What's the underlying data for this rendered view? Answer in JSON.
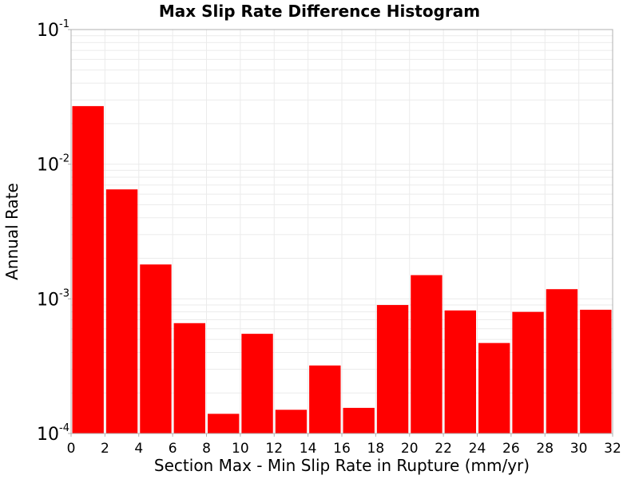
{
  "chart_data": {
    "type": "bar",
    "title": "Max Slip Rate Difference Histogram",
    "xlabel": "Section Max - Min Slip Rate in Rupture (mm/yr)",
    "ylabel": "Annual Rate",
    "y_scale": "log",
    "grid": true,
    "legend": "none",
    "colors": {
      "bar": "#ff0000",
      "bar_edge": "#ffffff",
      "grid": "#ebebeb",
      "plot_border": "#b0b0b0",
      "background": "#ffffff"
    },
    "xlim": [
      0,
      32
    ],
    "ylim": [
      0.0001,
      0.1
    ],
    "bin_width": 2,
    "bin_starts": [
      0,
      2,
      4,
      6,
      8,
      10,
      12,
      14,
      16,
      18,
      20,
      22,
      24,
      26,
      28,
      30
    ],
    "values": [
      0.027,
      0.0065,
      0.0018,
      0.00066,
      0.00014,
      0.00055,
      0.00015,
      0.00032,
      0.000155,
      0.0009,
      0.0015,
      0.00082,
      0.00047,
      0.0008,
      0.00118,
      0.00083
    ],
    "x_ticks": [
      "0",
      "2",
      "4",
      "6",
      "8",
      "10",
      "12",
      "14",
      "16",
      "18",
      "20",
      "22",
      "24",
      "26",
      "28",
      "30",
      "32"
    ],
    "x_tick_values": [
      0,
      2,
      4,
      6,
      8,
      10,
      12,
      14,
      16,
      18,
      20,
      22,
      24,
      26,
      28,
      30,
      32
    ],
    "y_ticks": [
      {
        "value": 0.1,
        "base": "10",
        "exp": "-1"
      },
      {
        "value": 0.01,
        "base": "10",
        "exp": "-2"
      },
      {
        "value": 0.001,
        "base": "10",
        "exp": "-3"
      },
      {
        "value": 0.0001,
        "base": "10",
        "exp": "-4"
      }
    ]
  }
}
